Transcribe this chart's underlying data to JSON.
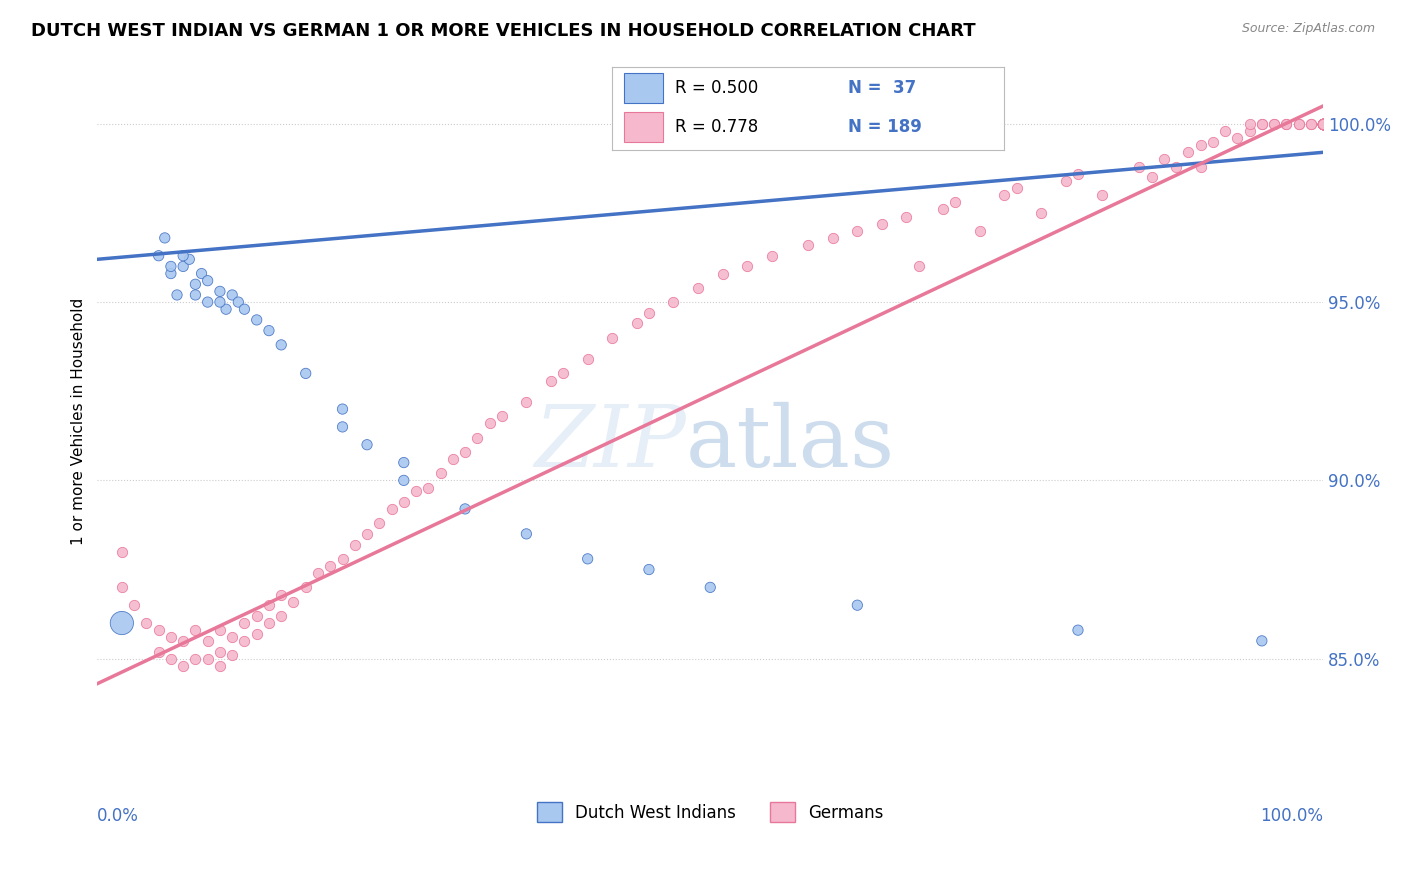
{
  "title": "DUTCH WEST INDIAN VS GERMAN 1 OR MORE VEHICLES IN HOUSEHOLD CORRELATION CHART",
  "source": "Source: ZipAtlas.com",
  "ylabel": "1 or more Vehicles in Household",
  "ytick_labels": [
    "85.0%",
    "90.0%",
    "95.0%",
    "100.0%"
  ],
  "ytick_values": [
    0.85,
    0.9,
    0.95,
    1.0
  ],
  "xlim": [
    0.0,
    1.0
  ],
  "ylim": [
    0.815,
    1.018
  ],
  "legend_label1": "Dutch West Indians",
  "legend_label2": "Germans",
  "R1": 0.5,
  "N1": 37,
  "R2": 0.778,
  "N2": 189,
  "color_blue": "#A8C8F0",
  "color_pink": "#F5B8CC",
  "color_line_blue": "#4472C4",
  "color_line_pink": "#E8789A",
  "blue_points_x": [
    0.02,
    0.05,
    0.055,
    0.06,
    0.065,
    0.07,
    0.075,
    0.08,
    0.085,
    0.09,
    0.1,
    0.105,
    0.11,
    0.115,
    0.12,
    0.13,
    0.14,
    0.15,
    0.17,
    0.2,
    0.22,
    0.25,
    0.3,
    0.35,
    0.4,
    0.45,
    0.5,
    0.62,
    0.8,
    0.95,
    0.06,
    0.07,
    0.08,
    0.09,
    0.1,
    0.2,
    0.25
  ],
  "blue_points_y": [
    0.86,
    0.963,
    0.968,
    0.958,
    0.952,
    0.96,
    0.962,
    0.955,
    0.958,
    0.956,
    0.953,
    0.948,
    0.952,
    0.95,
    0.948,
    0.945,
    0.942,
    0.938,
    0.93,
    0.92,
    0.91,
    0.9,
    0.892,
    0.885,
    0.878,
    0.875,
    0.87,
    0.865,
    0.858,
    0.855,
    0.96,
    0.963,
    0.952,
    0.95,
    0.95,
    0.915,
    0.905
  ],
  "blue_large_idx": 0,
  "pink_points_x": [
    0.02,
    0.02,
    0.03,
    0.04,
    0.05,
    0.05,
    0.06,
    0.06,
    0.07,
    0.07,
    0.08,
    0.08,
    0.09,
    0.09,
    0.1,
    0.1,
    0.1,
    0.11,
    0.11,
    0.12,
    0.12,
    0.13,
    0.13,
    0.14,
    0.14,
    0.15,
    0.15,
    0.16,
    0.17,
    0.18,
    0.19,
    0.2,
    0.21,
    0.22,
    0.23,
    0.24,
    0.25,
    0.26,
    0.27,
    0.28,
    0.29,
    0.3,
    0.31,
    0.32,
    0.33,
    0.35,
    0.37,
    0.38,
    0.4,
    0.42,
    0.44,
    0.45,
    0.47,
    0.49,
    0.51,
    0.53,
    0.55,
    0.58,
    0.6,
    0.62,
    0.64,
    0.66,
    0.67,
    0.69,
    0.7,
    0.72,
    0.74,
    0.75,
    0.77,
    0.79,
    0.8,
    0.82,
    0.85,
    0.86,
    0.87,
    0.88,
    0.89,
    0.9,
    0.9,
    0.91,
    0.92,
    0.93,
    0.94,
    0.94,
    0.95,
    0.95,
    0.96,
    0.96,
    0.97,
    0.97,
    0.98,
    0.98,
    0.99,
    0.99,
    1.0,
    1.0,
    1.0,
    1.0,
    1.0,
    1.0,
    1.0,
    1.0,
    1.0,
    1.0,
    1.0,
    1.0,
    1.0,
    1.0,
    1.0,
    1.0,
    1.0,
    1.0,
    1.0,
    1.0,
    1.0,
    1.0,
    1.0,
    1.0,
    1.0,
    1.0,
    1.0,
    1.0,
    1.0,
    1.0,
    1.0,
    1.0,
    1.0,
    1.0,
    1.0,
    1.0,
    1.0,
    1.0,
    1.0,
    1.0,
    1.0,
    1.0,
    1.0,
    1.0,
    1.0,
    1.0,
    1.0,
    1.0,
    1.0,
    1.0,
    1.0,
    1.0,
    1.0,
    1.0,
    1.0,
    1.0,
    1.0,
    1.0,
    1.0,
    1.0,
    1.0,
    1.0,
    1.0,
    1.0,
    1.0,
    1.0,
    1.0,
    1.0,
    1.0,
    1.0,
    1.0,
    1.0,
    1.0,
    1.0,
    1.0,
    1.0,
    1.0,
    1.0,
    1.0,
    1.0,
    1.0,
    1.0
  ],
  "pink_points_y": [
    0.88,
    0.87,
    0.865,
    0.86,
    0.858,
    0.852,
    0.85,
    0.856,
    0.848,
    0.855,
    0.85,
    0.858,
    0.85,
    0.855,
    0.848,
    0.852,
    0.858,
    0.851,
    0.856,
    0.855,
    0.86,
    0.857,
    0.862,
    0.86,
    0.865,
    0.862,
    0.868,
    0.866,
    0.87,
    0.874,
    0.876,
    0.878,
    0.882,
    0.885,
    0.888,
    0.892,
    0.894,
    0.897,
    0.898,
    0.902,
    0.906,
    0.908,
    0.912,
    0.916,
    0.918,
    0.922,
    0.928,
    0.93,
    0.934,
    0.94,
    0.944,
    0.947,
    0.95,
    0.954,
    0.958,
    0.96,
    0.963,
    0.966,
    0.968,
    0.97,
    0.972,
    0.974,
    0.96,
    0.976,
    0.978,
    0.97,
    0.98,
    0.982,
    0.975,
    0.984,
    0.986,
    0.98,
    0.988,
    0.985,
    0.99,
    0.988,
    0.992,
    0.994,
    0.988,
    0.995,
    0.998,
    0.996,
    0.998,
    1.0,
    1.0,
    1.0,
    1.0,
    1.0,
    1.0,
    1.0,
    1.0,
    1.0,
    1.0,
    1.0,
    1.0,
    1.0,
    1.0,
    1.0,
    1.0,
    1.0,
    1.0,
    1.0,
    1.0,
    1.0,
    1.0,
    1.0,
    1.0,
    1.0,
    1.0,
    1.0,
    1.0,
    1.0,
    1.0,
    1.0,
    1.0,
    1.0,
    1.0,
    1.0,
    1.0,
    1.0,
    1.0,
    1.0,
    1.0,
    1.0,
    1.0,
    1.0,
    1.0,
    1.0,
    1.0,
    1.0,
    1.0,
    1.0,
    1.0,
    1.0,
    1.0,
    1.0,
    1.0,
    1.0,
    1.0,
    1.0,
    1.0,
    1.0,
    1.0,
    1.0,
    1.0,
    1.0,
    1.0,
    1.0,
    1.0,
    1.0,
    1.0,
    1.0,
    1.0,
    1.0,
    1.0,
    1.0,
    1.0,
    1.0,
    1.0,
    1.0,
    1.0,
    1.0,
    1.0,
    1.0,
    1.0,
    1.0,
    1.0,
    1.0,
    1.0,
    1.0,
    1.0,
    1.0,
    1.0,
    1.0,
    1.0,
    1.0
  ],
  "blue_trendline_x": [
    0.0,
    1.0
  ],
  "blue_trendline_y": [
    0.962,
    0.992
  ],
  "pink_trendline_x": [
    0.0,
    1.0
  ],
  "pink_trendline_y": [
    0.843,
    1.005
  ]
}
